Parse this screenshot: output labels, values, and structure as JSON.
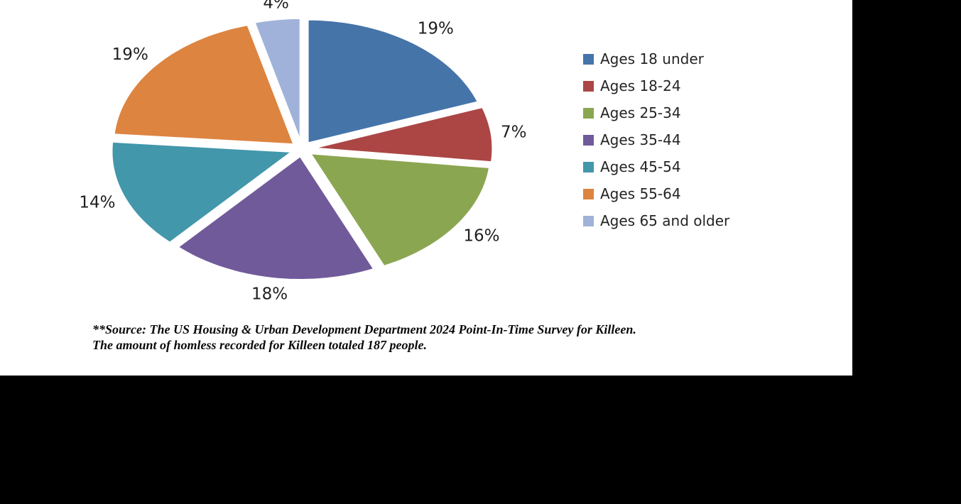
{
  "chart_data": {
    "type": "pie",
    "categories": [
      "Ages 18 under",
      "Ages 18-24",
      "Ages 25-34",
      "Ages 35-44",
      "Ages 45-54",
      "Ages 55-64",
      "Ages 65 and older"
    ],
    "values": [
      19,
      7,
      16,
      18,
      14,
      19,
      4
    ],
    "labels": [
      "19%",
      "7%",
      "16%",
      "18%",
      "14%",
      "19%",
      "4%"
    ],
    "unit": "%",
    "colors": [
      "#4574a9",
      "#ab4645",
      "#8ba651",
      "#705a9a",
      "#4297ab",
      "#dd8440",
      "#a0b2d9"
    ],
    "exploded": true,
    "start_angle_deg": 0,
    "direction": "clockwise",
    "legend_position": "right",
    "title": ""
  },
  "source_note": {
    "line1": "**Source: The US Housing & Urban Development Department 2024 Point-In-Time Survey for Killeen.",
    "line2": "The amount of homless recorded for Killeen totaled 187 people."
  }
}
